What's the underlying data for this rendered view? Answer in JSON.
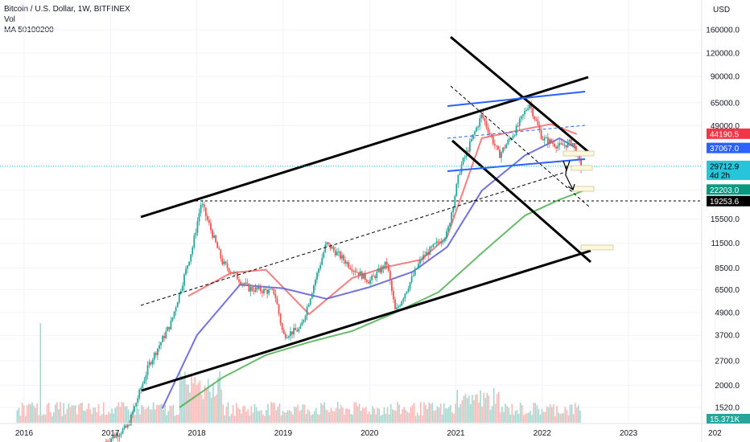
{
  "legend": {
    "symbol": "Bitcoin / U.S. Dollar, 1W, BITFINEX",
    "volume": "Vol",
    "ma": "MA 50100200"
  },
  "colors": {
    "candle_up": "#26a69a",
    "candle_down": "#ef5350",
    "ma50": "#f06a6a",
    "ma100": "#5b5bd6",
    "ma200": "#4caf50",
    "channel": "#000000",
    "blue_lines": "#2962ff",
    "current_price_line": "#00bcd4",
    "level_line": "#000000"
  },
  "chart_data": {
    "type": "line",
    "title": "Bitcoin / U.S. Dollar, 1W, BITFINEX",
    "currency": "USD",
    "y_scale": "log",
    "x_ticks": [
      "2016",
      "2017",
      "2018",
      "2019",
      "2020",
      "2021",
      "2022",
      "2023",
      "202"
    ],
    "y_ticks": [
      160000,
      120000,
      90000,
      65000,
      49000,
      22203,
      15500,
      11500,
      8500,
      6500,
      4900,
      3700,
      2700,
      2000,
      1520
    ],
    "y_tick_labels": [
      "160000.0",
      "120000.0",
      "90000.0",
      "65000.0",
      "49000.0",
      "22203.0",
      "15500.0",
      "11500.0",
      "8500.0",
      "6500.0",
      "4900.0",
      "3700.0",
      "2700.0",
      "2000.0",
      "1520.0"
    ],
    "price_tags": [
      {
        "label": "44190.5",
        "value": 44190.5,
        "color": "#f23645",
        "text_color": "#ffffff"
      },
      {
        "label": "37067.0",
        "value": 37067.0,
        "color": "#2962ff",
        "text_color": "#ffffff"
      },
      {
        "label": "29712.9",
        "value": 29712.9,
        "color": "#26c6da",
        "text_color": "#000000",
        "sub": "4d 2h"
      },
      {
        "label": "22203.0",
        "value": 22203.0,
        "color": "#089981",
        "text_color": "#ffffff"
      },
      {
        "label": "19253.6",
        "value": 19253.6,
        "color": "#000000",
        "text_color": "#ffffff"
      }
    ],
    "volume_tag": {
      "label": "15.371K",
      "color": "#26a69a"
    },
    "series": [
      {
        "name": "MA 50",
        "color": "#f06a6a",
        "x": [
          2017.9,
          2018.4,
          2018.8,
          2019.3,
          2019.8,
          2020.2,
          2020.6,
          2020.9,
          2021.3,
          2021.7,
          2022.1,
          2022.4
        ],
        "values": [
          6000,
          8000,
          8300,
          4800,
          7500,
          8600,
          9400,
          12500,
          42000,
          46000,
          50000,
          44190
        ]
      },
      {
        "name": "MA 100",
        "color": "#5b5bd6",
        "x": [
          2017.6,
          2018.0,
          2018.5,
          2019.0,
          2019.5,
          2020.0,
          2020.5,
          2020.9,
          2021.3,
          2021.8,
          2022.2,
          2022.4
        ],
        "values": [
          1500,
          3700,
          6900,
          6600,
          5800,
          6700,
          8100,
          11000,
          22000,
          34000,
          42000,
          37067
        ]
      },
      {
        "name": "MA 200",
        "color": "#4caf50",
        "x": [
          2017.8,
          2018.3,
          2018.8,
          2019.3,
          2019.8,
          2020.3,
          2020.8,
          2021.3,
          2021.8,
          2022.2,
          2022.5
        ],
        "values": [
          1520,
          2200,
          2900,
          3400,
          3900,
          4900,
          6300,
          10200,
          16200,
          19700,
          22203
        ]
      },
      {
        "name": "BTCUSD",
        "color": "#26a69a",
        "x": [
          2016.95,
          2017.2,
          2017.45,
          2017.7,
          2017.95,
          2018.05,
          2018.3,
          2018.6,
          2018.9,
          2019.0,
          2019.2,
          2019.5,
          2019.8,
          2020.0,
          2020.2,
          2020.3,
          2020.6,
          2020.9,
          2021.05,
          2021.3,
          2021.5,
          2021.7,
          2021.85,
          2022.0,
          2022.2,
          2022.35,
          2022.45
        ],
        "values": [
          1000,
          1200,
          2600,
          4300,
          11000,
          19000,
          9000,
          6600,
          6300,
          3700,
          4000,
          11500,
          8500,
          7200,
          9000,
          4900,
          9500,
          13000,
          29000,
          56000,
          34000,
          47000,
          65000,
          42000,
          38000,
          40000,
          29712
        ]
      }
    ]
  }
}
